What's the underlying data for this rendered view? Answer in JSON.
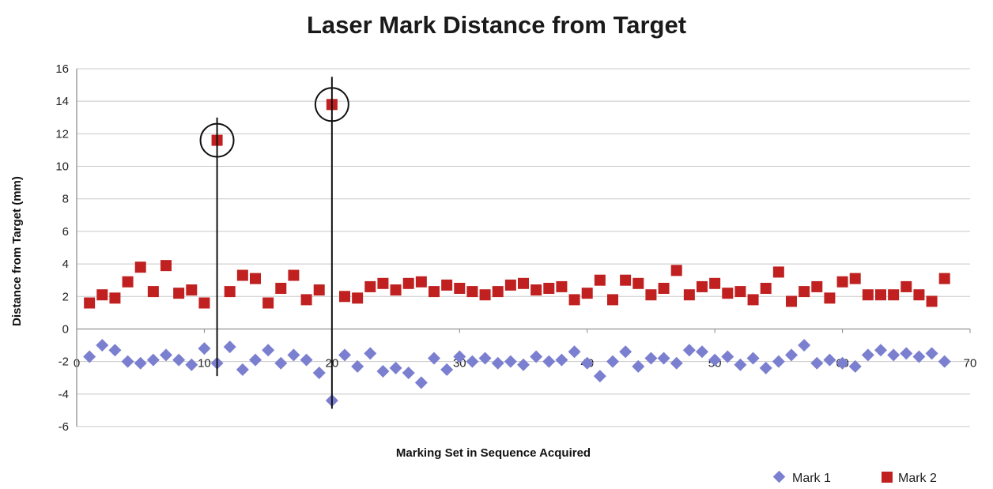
{
  "chart_data": {
    "type": "scatter",
    "title": "Laser Mark Distance from Target",
    "xlabel": "Marking Set in Sequence Acquired",
    "ylabel": "Distance from Target (mm)",
    "xlim": [
      0,
      70
    ],
    "ylim": [
      -6,
      16
    ],
    "x_ticks": [
      0,
      10,
      20,
      30,
      40,
      50,
      60,
      70
    ],
    "y_ticks": [
      -6,
      -4,
      -2,
      0,
      2,
      4,
      6,
      8,
      10,
      12,
      14,
      16
    ],
    "grid": true,
    "legend_position": "bottom-right",
    "series": [
      {
        "name": "Mark 1",
        "marker": "diamond",
        "color": "#7b7fd0",
        "x": [
          1,
          2,
          3,
          4,
          5,
          6,
          7,
          8,
          9,
          10,
          11,
          12,
          13,
          14,
          15,
          16,
          17,
          18,
          19,
          20,
          21,
          22,
          23,
          24,
          25,
          26,
          27,
          28,
          29,
          30,
          31,
          32,
          33,
          34,
          35,
          36,
          37,
          38,
          39,
          40,
          41,
          42,
          43,
          44,
          45,
          46,
          47,
          48,
          49,
          50,
          51,
          52,
          53,
          54,
          55,
          56,
          57,
          58,
          59,
          60,
          61,
          62,
          63,
          64,
          65,
          66,
          67,
          68
        ],
        "y": [
          -1.7,
          -1.0,
          -1.3,
          -2.0,
          -2.1,
          -1.9,
          -1.6,
          -1.9,
          -2.2,
          -1.2,
          -2.1,
          -1.1,
          -2.5,
          -1.9,
          -1.3,
          -2.1,
          -1.6,
          -1.9,
          -2.7,
          -4.4,
          -1.6,
          -2.3,
          -1.5,
          -2.6,
          -2.4,
          -2.7,
          -3.3,
          -1.8,
          -2.5,
          -1.7,
          -2.0,
          -1.8,
          -2.1,
          -2.0,
          -2.2,
          -1.7,
          -2.0,
          -1.9,
          -1.4,
          -2.1,
          -2.9,
          -2.0,
          -1.4,
          -2.3,
          -1.8,
          -1.8,
          -2.1,
          -1.3,
          -1.4,
          -1.9,
          -1.7,
          -2.2,
          -1.8,
          -2.4,
          -2.0,
          -1.6,
          -1.0,
          -2.1,
          -1.9,
          -2.1,
          -2.3,
          -1.6,
          -1.3,
          -1.6,
          -1.5,
          -1.7,
          -1.5,
          -2.0
        ]
      },
      {
        "name": "Mark 2",
        "marker": "square",
        "color": "#c02020",
        "x": [
          1,
          2,
          3,
          4,
          5,
          6,
          7,
          8,
          9,
          10,
          11,
          12,
          13,
          14,
          15,
          16,
          17,
          18,
          19,
          20,
          21,
          22,
          23,
          24,
          25,
          26,
          27,
          28,
          29,
          30,
          31,
          32,
          33,
          34,
          35,
          36,
          37,
          38,
          39,
          40,
          41,
          42,
          43,
          44,
          45,
          46,
          47,
          48,
          49,
          50,
          51,
          52,
          53,
          54,
          55,
          56,
          57,
          58,
          59,
          60,
          61,
          62,
          63,
          64,
          65,
          66,
          67,
          68
        ],
        "y": [
          1.6,
          2.1,
          1.9,
          2.9,
          3.8,
          2.3,
          3.9,
          2.2,
          2.4,
          1.6,
          11.6,
          2.3,
          3.3,
          3.1,
          1.6,
          2.5,
          3.3,
          1.8,
          2.4,
          13.8,
          2.0,
          1.9,
          2.6,
          2.8,
          2.4,
          2.8,
          2.9,
          2.3,
          2.7,
          2.5,
          2.3,
          2.1,
          2.3,
          2.7,
          2.8,
          2.4,
          2.5,
          2.6,
          1.8,
          2.2,
          3.0,
          1.8,
          3.0,
          2.8,
          2.1,
          2.5,
          3.6,
          2.1,
          2.6,
          2.8,
          2.2,
          2.3,
          1.8,
          2.5,
          3.5,
          1.7,
          2.3,
          2.6,
          1.9,
          2.9,
          3.1,
          2.1,
          2.1,
          2.1,
          2.6,
          2.1,
          1.7,
          3.1
        ]
      }
    ],
    "annotations": [
      {
        "type": "circle-with-line",
        "x": 11,
        "y": 11.6,
        "line_top": 13.0,
        "line_bottom": -2.9
      },
      {
        "type": "circle-with-line",
        "x": 20,
        "y": 13.8,
        "line_top": 15.5,
        "line_bottom": -4.9
      }
    ]
  }
}
